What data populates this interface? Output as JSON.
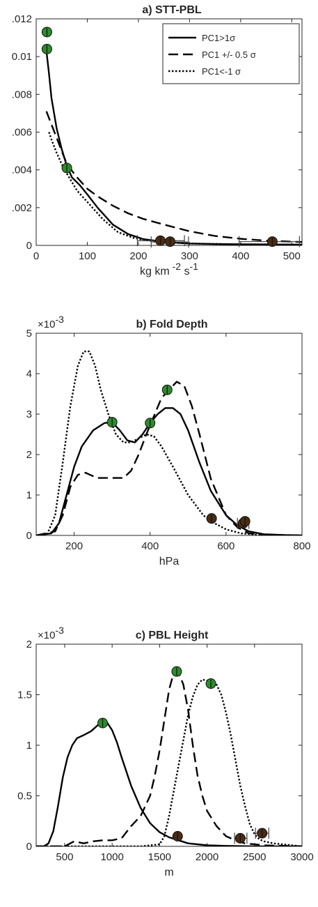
{
  "chart_data": [
    {
      "type": "line",
      "title": "a) STT-PBL",
      "xlabel_base": "kg km",
      "xlabel_exp1": "-2",
      "xlabel_mid": " s",
      "xlabel_exp2": "-1",
      "y_exponent": "",
      "xlim": [
        0,
        520
      ],
      "ylim": [
        0,
        0.012
      ],
      "xticks": [
        0,
        100,
        200,
        300,
        400,
        500
      ],
      "xtick_labels": [
        "0",
        "100",
        "200",
        "300",
        "400",
        "500"
      ],
      "yticks": [
        0,
        0.002,
        0.004,
        0.006,
        0.008,
        0.01,
        0.012
      ],
      "ytick_labels": [
        "0",
        ".002",
        ".004",
        ".006",
        ".008",
        "0.01",
        ".012"
      ],
      "legend": {
        "placement": "top-right",
        "entries": [
          {
            "style": "solid",
            "label": "PC1>1σ"
          },
          {
            "style": "dashed",
            "label": "PC1 +/- 0.5 σ"
          },
          {
            "style": "dotted",
            "label": "PC1<-1 σ"
          }
        ]
      },
      "series": [
        {
          "style": "solid",
          "x": [
            20,
            25,
            30,
            40,
            50,
            60,
            70,
            85,
            100,
            120,
            150,
            180,
            210,
            240,
            270,
            300,
            350,
            400,
            450,
            520
          ],
          "y": [
            0.0103,
            0.0091,
            0.0078,
            0.0062,
            0.0051,
            0.0042,
            0.0036,
            0.0032,
            0.0027,
            0.002,
            0.0011,
            0.0006,
            0.00033,
            0.00022,
            0.00015,
            0.0001,
            7e-05,
            6e-05,
            5e-05,
            4e-05
          ]
        },
        {
          "style": "dashed",
          "x": [
            20,
            30,
            40,
            50,
            60,
            80,
            100,
            120,
            150,
            180,
            210,
            250,
            300,
            350,
            400,
            450,
            500,
            520
          ],
          "y": [
            0.0071,
            0.0064,
            0.0057,
            0.005,
            0.0043,
            0.0036,
            0.003,
            0.0026,
            0.0021,
            0.0017,
            0.0014,
            0.0011,
            0.00075,
            0.0005,
            0.00035,
            0.00025,
            0.0002,
            0.00018
          ]
        },
        {
          "style": "dotted",
          "x": [
            25,
            30,
            40,
            50,
            60,
            80,
            100,
            130,
            160,
            190,
            220,
            260,
            300,
            400,
            520
          ],
          "y": [
            0.006,
            0.0056,
            0.0049,
            0.0043,
            0.0038,
            0.0029,
            0.0023,
            0.0014,
            0.0007,
            0.0004,
            0.00025,
            0.00015,
            0.0001,
            6e-05,
            4e-05
          ]
        }
      ],
      "markers": [
        {
          "color": "green",
          "x": 21,
          "y": 0.0113
        },
        {
          "color": "green",
          "x": 21,
          "y": 0.0104
        },
        {
          "color": "green",
          "x": 60,
          "y": 0.0041
        },
        {
          "color": "brown",
          "x": 243,
          "y": 0.00025
        },
        {
          "color": "brown",
          "x": 262,
          "y": 0.0002
        },
        {
          "color": "brown",
          "x": 462,
          "y": 0.0002
        }
      ],
      "errorbars": [
        {
          "x1": 198,
          "x2": 290,
          "y": 0.00025
        },
        {
          "x1": 225,
          "x2": 298,
          "y": 0.00018
        },
        {
          "x1": 397,
          "x2": 515,
          "y": 0.0002
        }
      ]
    },
    {
      "type": "line",
      "title": "b) Fold Depth",
      "xlabel_base": "hPa",
      "y_exponent": "-3",
      "xlim": [
        100,
        800
      ],
      "ylim": [
        0,
        5
      ],
      "xticks": [
        200,
        400,
        600,
        800
      ],
      "xtick_labels": [
        "200",
        "400",
        "600",
        "800"
      ],
      "yticks": [
        0,
        1,
        2,
        3,
        4,
        5
      ],
      "ytick_labels": [
        "0",
        "1",
        "2",
        "3",
        "4",
        "5"
      ],
      "series": [
        {
          "style": "solid",
          "x": [
            100,
            140,
            160,
            180,
            200,
            220,
            250,
            280,
            300,
            320,
            340,
            360,
            380,
            400,
            420,
            440,
            460,
            480,
            500,
            530,
            560,
            600,
            630,
            660,
            700,
            750,
            800
          ],
          "y": [
            0,
            0.05,
            0.3,
            1.0,
            1.7,
            2.2,
            2.6,
            2.78,
            2.8,
            2.6,
            2.35,
            2.3,
            2.5,
            2.78,
            3.0,
            3.15,
            3.15,
            3.0,
            2.6,
            1.8,
            1.1,
            0.5,
            0.25,
            0.1,
            0.03,
            0.01,
            0
          ]
        },
        {
          "style": "dashed",
          "x": [
            100,
            150,
            170,
            190,
            210,
            230,
            260,
            300,
            330,
            350,
            370,
            390,
            410,
            430,
            450,
            470,
            490,
            510,
            530,
            560,
            600,
            630,
            660,
            700,
            800
          ],
          "y": [
            0,
            0.1,
            0.5,
            1.2,
            1.5,
            1.55,
            1.42,
            1.42,
            1.42,
            1.6,
            2.0,
            2.5,
            2.95,
            3.4,
            3.6,
            3.8,
            3.7,
            3.2,
            2.5,
            1.4,
            0.5,
            0.2,
            0.05,
            0.02,
            0
          ]
        },
        {
          "style": "dotted",
          "x": [
            100,
            130,
            150,
            170,
            190,
            210,
            225,
            240,
            255,
            270,
            290,
            310,
            330,
            350,
            370,
            390,
            410,
            430,
            460,
            500,
            540,
            560,
            600,
            640,
            680,
            720,
            800
          ],
          "y": [
            0,
            0.05,
            0.5,
            1.8,
            3.2,
            4.2,
            4.55,
            4.55,
            4.2,
            3.6,
            3.0,
            2.5,
            2.3,
            2.3,
            2.4,
            2.5,
            2.45,
            2.2,
            1.7,
            1.0,
            0.5,
            0.35,
            0.15,
            0.05,
            0.02,
            0.01,
            0
          ]
        }
      ],
      "markers": [
        {
          "color": "green",
          "x": 300,
          "y": 2.8
        },
        {
          "color": "green",
          "x": 400,
          "y": 2.78
        },
        {
          "color": "green",
          "x": 445,
          "y": 3.6
        },
        {
          "color": "brown",
          "x": 562,
          "y": 0.42
        },
        {
          "color": "brown",
          "x": 645,
          "y": 0.3
        },
        {
          "color": "brown",
          "x": 650,
          "y": 0.35
        }
      ],
      "errorbars": [
        {
          "x1": 630,
          "x2": 660,
          "y": 0.3
        }
      ]
    },
    {
      "type": "line",
      "title": "c) PBL Height",
      "xlabel_base": "m",
      "y_exponent": "-3",
      "xlim": [
        200,
        3000
      ],
      "ylim": [
        0,
        2
      ],
      "xticks": [
        500,
        1000,
        1500,
        2000,
        2500,
        3000
      ],
      "xtick_labels": [
        "500",
        "1000",
        "1500",
        "2000",
        "2500",
        "3000"
      ],
      "yticks": [
        0,
        0.5,
        1,
        1.5,
        2
      ],
      "ytick_labels": [
        "0",
        "0.5",
        "1",
        "1.5",
        "2"
      ],
      "series": [
        {
          "style": "solid",
          "x": [
            200,
            280,
            330,
            380,
            430,
            480,
            530,
            580,
            630,
            700,
            780,
            850,
            900,
            950,
            1000,
            1050,
            1100,
            1200,
            1300,
            1400,
            1500,
            1600,
            1700,
            1800,
            2000,
            2200,
            2500,
            3000
          ],
          "y": [
            0,
            0,
            0.03,
            0.15,
            0.4,
            0.68,
            0.88,
            1.0,
            1.07,
            1.1,
            1.14,
            1.2,
            1.23,
            1.22,
            1.15,
            1.03,
            0.88,
            0.6,
            0.38,
            0.23,
            0.14,
            0.09,
            0.06,
            0.03,
            0.01,
            0.005,
            0,
            0
          ]
        },
        {
          "style": "dashed",
          "x": [
            200,
            500,
            600,
            700,
            800,
            900,
            1000,
            1100,
            1200,
            1300,
            1400,
            1450,
            1500,
            1550,
            1600,
            1650,
            1700,
            1750,
            1800,
            1850,
            1900,
            1950,
            2000,
            2100,
            2200,
            2300,
            2400,
            2600,
            3000
          ],
          "y": [
            0,
            0,
            0.05,
            0.03,
            0.05,
            0.06,
            0.06,
            0.08,
            0.2,
            0.3,
            0.5,
            0.7,
            0.95,
            1.25,
            1.55,
            1.72,
            1.72,
            1.6,
            1.35,
            1.0,
            0.7,
            0.5,
            0.35,
            0.2,
            0.1,
            0.06,
            0.03,
            0.01,
            0
          ]
        },
        {
          "style": "dotted",
          "x": [
            200,
            1300,
            1500,
            1550,
            1600,
            1650,
            1700,
            1750,
            1800,
            1850,
            1900,
            1950,
            2000,
            2050,
            2100,
            2150,
            2200,
            2250,
            2300,
            2350,
            2400,
            2450,
            2500,
            2550,
            2600,
            2700,
            2800,
            3000
          ],
          "y": [
            0,
            0,
            0.02,
            0.1,
            0.3,
            0.55,
            0.8,
            1.05,
            1.3,
            1.48,
            1.6,
            1.65,
            1.64,
            1.62,
            1.6,
            1.5,
            1.32,
            1.1,
            0.85,
            0.6,
            0.4,
            0.22,
            0.12,
            0.07,
            0.05,
            0.03,
            0.02,
            0
          ]
        }
      ],
      "markers": [
        {
          "color": "green",
          "x": 900,
          "y": 1.22
        },
        {
          "color": "green",
          "x": 1680,
          "y": 1.73
        },
        {
          "color": "green",
          "x": 2040,
          "y": 1.61
        },
        {
          "color": "brown",
          "x": 1690,
          "y": 0.1
        },
        {
          "color": "brown",
          "x": 2350,
          "y": 0.08
        },
        {
          "color": "brown",
          "x": 2580,
          "y": 0.13
        }
      ],
      "errorbars": [
        {
          "x1": 2290,
          "x2": 2420,
          "y": 0.08
        },
        {
          "x1": 2510,
          "x2": 2650,
          "y": 0.13
        }
      ]
    }
  ],
  "colors": {
    "axis": "#262626",
    "marker_green": "#2e8b2e",
    "marker_brown": "#4a2b14",
    "line": "#000000"
  }
}
